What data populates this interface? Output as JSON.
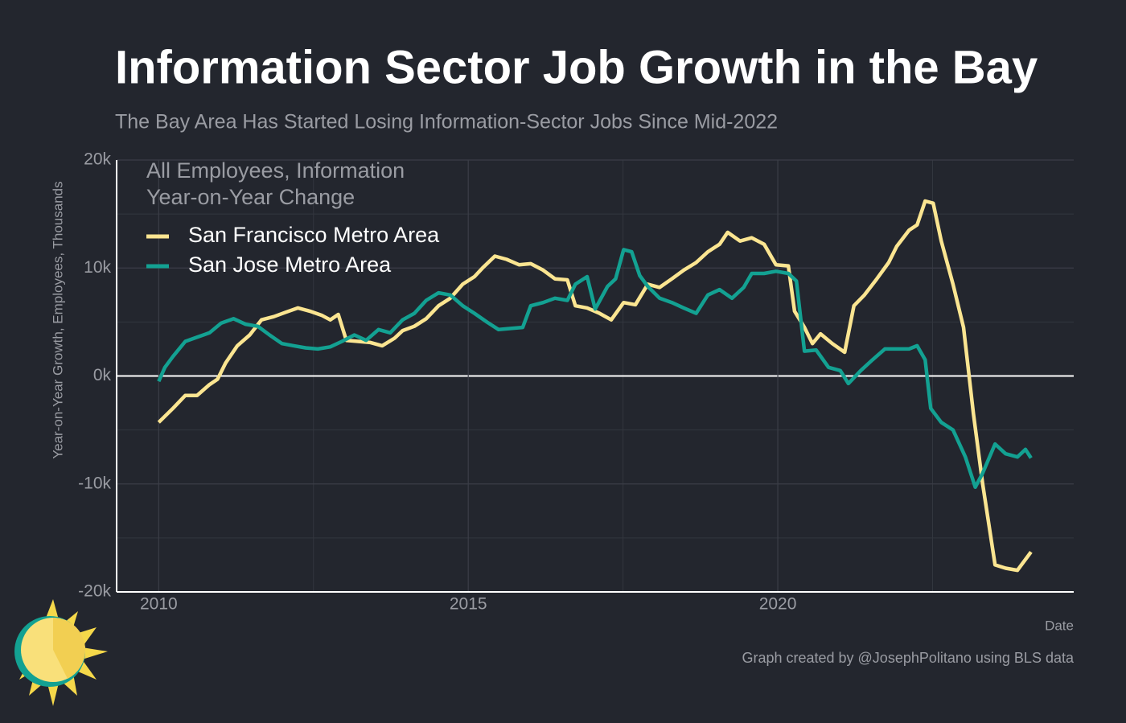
{
  "chart_data": {
    "type": "line",
    "title": "Information Sector Job Growth in the Bay",
    "subtitle": "The Bay Area Has Started Losing Information-Sector Jobs Since Mid-2022",
    "ylabel": "Year-on-Year Growth, Employees, Thousands",
    "xlabel": "Date",
    "caption": "Graph created by @JosephPolitano using BLS data",
    "legend_title": [
      "All Employees, Information",
      "Year-on-Year Change"
    ],
    "legend_position": "top-left",
    "grid": true,
    "xlim": [
      2009.32,
      2024.78
    ],
    "xticks": [
      2010,
      2015,
      2020
    ],
    "xminorticks": [
      2012.5,
      2017.5,
      2022.5
    ],
    "ylim": [
      -20,
      20
    ],
    "yticks": [
      {
        "value": 20,
        "label": "20k"
      },
      {
        "value": 10,
        "label": "10k"
      },
      {
        "value": 0,
        "label": "0k"
      },
      {
        "value": -10,
        "label": "-10k"
      },
      {
        "value": -20,
        "label": "-20k"
      }
    ],
    "yminorticks": [
      15,
      5,
      -5,
      -15
    ],
    "series": [
      {
        "name": "San Francisco Metro Area",
        "color": "#fbe591",
        "x": [
          2010,
          2010.23,
          2010.43,
          2010.62,
          2010.82,
          2010.95,
          2011.08,
          2011.27,
          2011.47,
          2011.66,
          2011.86,
          2012.05,
          2012.25,
          2012.44,
          2012.64,
          2012.77,
          2012.9,
          2013.03,
          2013.22,
          2013.42,
          2013.61,
          2013.81,
          2013.94,
          2014.13,
          2014.32,
          2014.52,
          2014.71,
          2014.91,
          2015.1,
          2015.23,
          2015.43,
          2015.62,
          2015.82,
          2016.01,
          2016.21,
          2016.4,
          2016.6,
          2016.73,
          2016.92,
          2017.12,
          2017.31,
          2017.51,
          2017.7,
          2017.9,
          2018.09,
          2018.29,
          2018.48,
          2018.68,
          2018.87,
          2019.06,
          2019.19,
          2019.39,
          2019.58,
          2019.78,
          2019.97,
          2020.17,
          2020.27,
          2020.43,
          2020.56,
          2020.69,
          2020.88,
          2021.08,
          2021.23,
          2021.4,
          2021.6,
          2021.79,
          2021.92,
          2022.12,
          2022.25,
          2022.38,
          2022.51,
          2022.64,
          2022.83,
          2023,
          2023.16,
          2023.31,
          2023.51,
          2023.68,
          2023.87,
          2024.09
        ],
        "values": [
          -4.3,
          -3,
          -1.8,
          -1.8,
          -0.8,
          -0.3,
          1.2,
          2.8,
          3.8,
          5.2,
          5.5,
          5.9,
          6.3,
          6,
          5.6,
          5.2,
          5.7,
          3.3,
          3.2,
          3.1,
          2.8,
          3.5,
          4.2,
          4.6,
          5.3,
          6.5,
          7.2,
          8.5,
          9.2,
          10,
          11.1,
          10.8,
          10.3,
          10.4,
          9.8,
          9,
          8.9,
          6.5,
          6.3,
          5.8,
          5.2,
          6.8,
          6.6,
          8.5,
          8.2,
          9,
          9.8,
          10.5,
          11.5,
          12.2,
          13.3,
          12.5,
          12.8,
          12.2,
          10.3,
          10.2,
          6,
          4.5,
          3,
          3.9,
          3,
          2.2,
          6.5,
          7.5,
          9,
          10.5,
          12,
          13.5,
          14,
          16.2,
          16,
          12.5,
          8.5,
          4.5,
          -3.5,
          -10,
          -17.5,
          -17.8,
          -18,
          -16.3
        ]
      },
      {
        "name": "San Jose Metro Area",
        "color": "#13a192",
        "x": [
          2010,
          2010.1,
          2010.23,
          2010.43,
          2010.62,
          2010.82,
          2011.01,
          2011.21,
          2011.4,
          2011.6,
          2011.79,
          2011.99,
          2012.18,
          2012.38,
          2012.57,
          2012.77,
          2012.96,
          2013.16,
          2013.35,
          2013.55,
          2013.74,
          2013.94,
          2014.13,
          2014.32,
          2014.52,
          2014.71,
          2014.91,
          2015.1,
          2015.3,
          2015.49,
          2015.69,
          2015.88,
          2016.01,
          2016.21,
          2016.4,
          2016.6,
          2016.73,
          2016.92,
          2017.05,
          2017.25,
          2017.38,
          2017.51,
          2017.64,
          2017.77,
          2017.9,
          2018.09,
          2018.29,
          2018.48,
          2018.68,
          2018.87,
          2019.06,
          2019.26,
          2019.45,
          2019.58,
          2019.78,
          2019.97,
          2020.17,
          2020.3,
          2020.43,
          2020.62,
          2020.82,
          2021.01,
          2021.14,
          2021.34,
          2021.53,
          2021.73,
          2021.92,
          2022.12,
          2022.25,
          2022.38,
          2022.47,
          2022.64,
          2022.83,
          2023.03,
          2023.19,
          2023.31,
          2023.51,
          2023.68,
          2023.87,
          2024,
          2024.09
        ],
        "values": [
          -0.5,
          0.8,
          1.8,
          3.2,
          3.6,
          4,
          4.9,
          5.3,
          4.8,
          4.6,
          3.8,
          3,
          2.8,
          2.6,
          2.5,
          2.7,
          3.2,
          3.8,
          3.3,
          4.3,
          4,
          5.2,
          5.8,
          7,
          7.7,
          7.5,
          6.5,
          5.8,
          5,
          4.3,
          4.4,
          4.5,
          6.5,
          6.8,
          7.2,
          7,
          8.5,
          9.2,
          6.2,
          8.3,
          9,
          11.7,
          11.5,
          9.3,
          8.3,
          7.2,
          6.8,
          6.3,
          5.8,
          7.5,
          8,
          7.2,
          8.2,
          9.5,
          9.5,
          9.7,
          9.5,
          8.8,
          2.3,
          2.4,
          0.8,
          0.5,
          -0.7,
          0.5,
          1.5,
          2.5,
          2.5,
          2.5,
          2.8,
          1.5,
          -3,
          -4.3,
          -5,
          -7.5,
          -10.3,
          -9,
          -6.3,
          -7.2,
          -7.5,
          -6.8,
          -7.6
        ]
      }
    ]
  }
}
